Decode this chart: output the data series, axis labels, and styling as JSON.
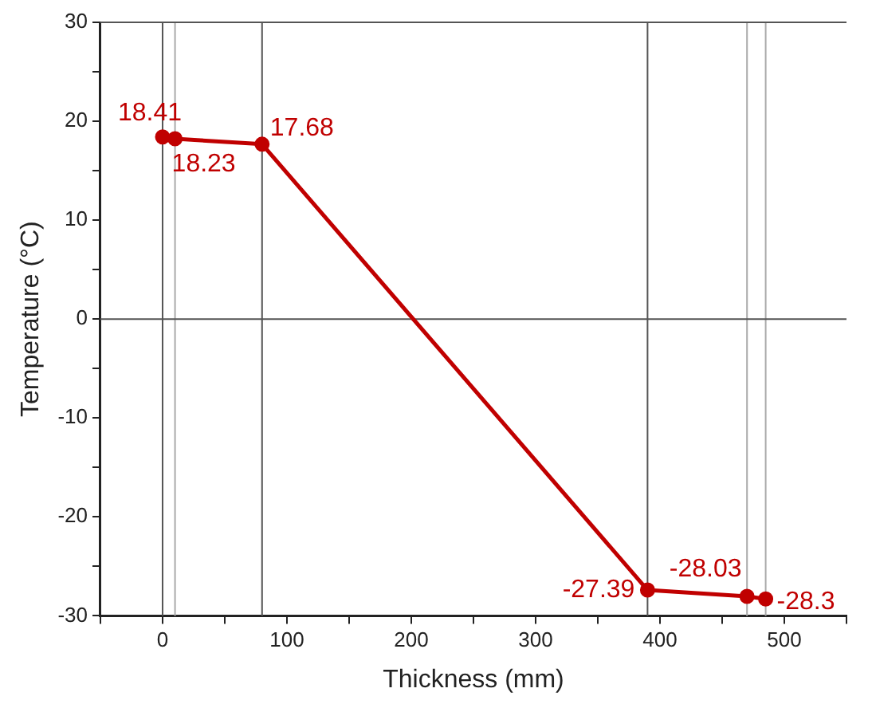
{
  "chart_data": {
    "type": "line",
    "xlabel": "Thickness (mm)",
    "ylabel": "Temperature (°C)",
    "x": [
      0,
      10,
      80,
      390,
      470,
      485
    ],
    "series": [
      {
        "color": "#c00000",
        "values": [
          18.41,
          18.23,
          17.68,
          -27.39,
          -28.03,
          -28.3
        ]
      }
    ],
    "xlim": [
      -50,
      550
    ],
    "xticks": [
      {
        "value": -50,
        "label": null
      },
      0,
      {
        "value": 50,
        "label": null
      },
      100,
      {
        "value": 150,
        "label": null
      },
      200,
      {
        "value": 250,
        "label": null
      },
      300,
      {
        "value": 350,
        "label": null
      },
      400,
      {
        "value": 450,
        "label": null
      },
      500,
      {
        "value": 550,
        "label": null
      }
    ],
    "ylim": [
      -30,
      30
    ],
    "yticks": [
      -30,
      {
        "value": -25,
        "label": null
      },
      -20,
      {
        "value": -15,
        "label": null
      },
      -10,
      {
        "value": -5,
        "label": null
      },
      0,
      {
        "value": 5,
        "label": null
      },
      10,
      {
        "value": 15,
        "label": null
      },
      20,
      {
        "value": 25,
        "label": null
      },
      30
    ],
    "ref_lines": [
      {
        "axis": "x",
        "value": 0,
        "color": "#555555"
      },
      {
        "axis": "x",
        "value": 10,
        "color": "#aaaaaa"
      },
      {
        "axis": "x",
        "value": 80,
        "color": "#555555"
      },
      {
        "axis": "x",
        "value": 390,
        "color": "#555555"
      },
      {
        "axis": "x",
        "value": 470,
        "color": "#aaaaaa"
      },
      {
        "axis": "x",
        "value": 485,
        "color": "#aaaaaa"
      },
      {
        "axis": "y",
        "value": 0,
        "color": "#555555"
      }
    ],
    "data_labels": true,
    "marker": "circle",
    "line_style": "solid",
    "grid": false,
    "legend": false
  }
}
